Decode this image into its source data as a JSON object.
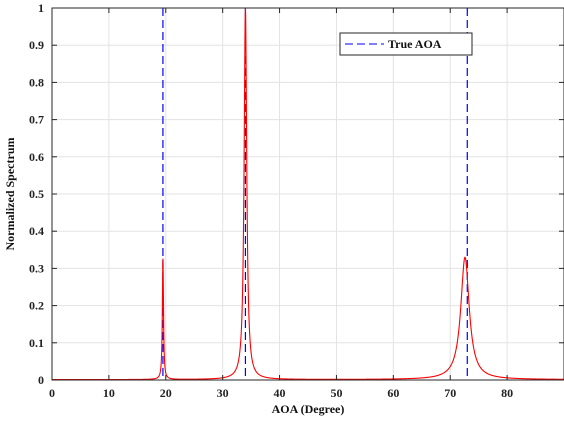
{
  "chart_data": {
    "type": "line",
    "xlabel": "AOA (Degree)",
    "ylabel": "Normalized Spectrum",
    "xlim": [
      0,
      90
    ],
    "ylim": [
      0,
      1
    ],
    "xticks": [
      0,
      10,
      20,
      30,
      40,
      50,
      60,
      70,
      80
    ],
    "yticks": [
      0,
      0.1,
      0.2,
      0.3,
      0.4,
      0.5,
      0.6,
      0.7,
      0.8,
      0.9,
      1
    ],
    "grid": true,
    "legend": {
      "placement": "top-right",
      "entries": [
        "True AOA"
      ]
    },
    "true_aoa": {
      "name": "True AOA",
      "color": "#0000ff",
      "style": "dashed",
      "x": [
        19.5,
        34,
        73
      ]
    },
    "spectrum": {
      "color": "#ff0000",
      "peaks": [
        {
          "x": 19.5,
          "y": 0.33
        },
        {
          "x": 34,
          "y": 1.0
        },
        {
          "x": 72.6,
          "y": 0.33
        }
      ],
      "baseline": 0.001,
      "end_value": 0.004
    }
  }
}
